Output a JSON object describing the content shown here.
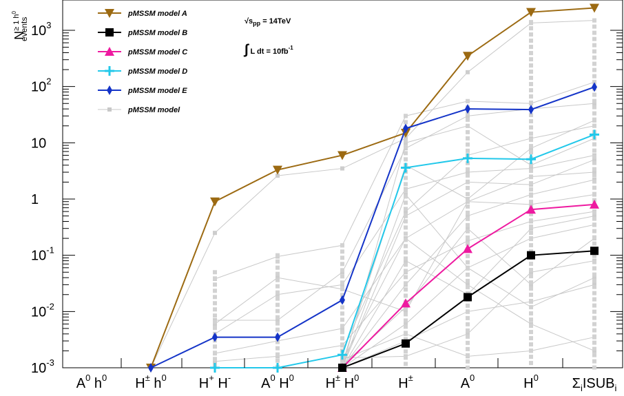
{
  "chart_data": {
    "type": "line",
    "yscale": "log",
    "ylim": [
      0.001,
      3000
    ],
    "ylabel": {
      "main": "N",
      "sup": "≥ 1 h",
      "sup_sup": "0",
      "sub": "events"
    },
    "y_ticks": [
      {
        "value": 0.001,
        "base": "10",
        "exp": "-3"
      },
      {
        "value": 0.01,
        "base": "10",
        "exp": "-2"
      },
      {
        "value": 0.1,
        "base": "10",
        "exp": "-1"
      },
      {
        "value": 1,
        "base": "1",
        "exp": ""
      },
      {
        "value": 10,
        "base": "10",
        "exp": ""
      },
      {
        "value": 100,
        "base": "10",
        "exp": "2"
      },
      {
        "value": 1000,
        "base": "10",
        "exp": "3"
      }
    ],
    "categories": [
      {
        "base": "A",
        "sup": "0",
        "mid": " h",
        "sup2": "0",
        "tail": ""
      },
      {
        "base": "H",
        "sup": "±",
        "mid": " h",
        "sup2": "0",
        "tail": ""
      },
      {
        "base": "H",
        "sup": "+",
        "mid": " H",
        "sup2": "-",
        "tail": ""
      },
      {
        "base": "A",
        "sup": "0",
        "mid": " H",
        "sup2": "0",
        "tail": ""
      },
      {
        "base": "H",
        "sup": "±",
        "mid": " H",
        "sup2": "0",
        "tail": ""
      },
      {
        "base": "H",
        "sup": "±",
        "mid": "",
        "sup2": "",
        "tail": ""
      },
      {
        "base": "A",
        "sup": "0",
        "mid": "",
        "sup2": "",
        "tail": ""
      },
      {
        "base": "H",
        "sup": "0",
        "mid": "",
        "sup2": "",
        "tail": ""
      },
      {
        "base": "Σ",
        "sub": "i",
        "mid": "ISUB",
        "sub2": "i",
        "tail": ""
      }
    ],
    "annotations": {
      "energy": "√s",
      "energy_sub": "pp",
      "energy_value": " = 14TeV",
      "lumi_integral": "∫",
      "lumi_text": "L dt = 10fb",
      "lumi_sup": "-1"
    },
    "series": [
      {
        "name": "pMSSM model A",
        "color": "#9c6a12",
        "marker": "triangle-down",
        "values": [
          null,
          0.001,
          0.9,
          3.3,
          6.0,
          15,
          350,
          2100,
          2500
        ]
      },
      {
        "name": "pMSSM model B",
        "color": "#000000",
        "marker": "square",
        "values": [
          null,
          null,
          null,
          null,
          0.001,
          0.0027,
          0.018,
          0.1,
          0.12
        ]
      },
      {
        "name": "pMSSM model C",
        "color": "#ee1aa0",
        "marker": "triangle-up",
        "values": [
          null,
          null,
          null,
          null,
          0.001,
          0.014,
          0.13,
          0.65,
          0.8
        ]
      },
      {
        "name": "pMSSM model D",
        "color": "#22c8ea",
        "marker": "cross",
        "values": [
          null,
          null,
          0.001,
          0.001,
          0.0017,
          3.6,
          5.3,
          5.1,
          14
        ]
      },
      {
        "name": "pMSSM model E",
        "color": "#1434c8",
        "marker": "diamond",
        "values": [
          null,
          0.001,
          0.0035,
          0.0035,
          0.016,
          18,
          40,
          39,
          98
        ]
      },
      {
        "name": "pMSSM model",
        "color": "#c8c8c8",
        "marker": "small-square",
        "values": [
          null,
          null,
          0.03,
          0.06,
          0.1,
          3.0,
          20,
          30,
          60
        ]
      }
    ],
    "background_models": [
      [
        null,
        0.001,
        0.25,
        2.6,
        3.5,
        12,
        180,
        1350,
        1500
      ],
      [
        null,
        null,
        0.038,
        0.095,
        0.15,
        30,
        55,
        50,
        120
      ],
      [
        null,
        null,
        0.007,
        0.007,
        0.05,
        8,
        30,
        40,
        50
      ],
      [
        null,
        null,
        0.006,
        0.04,
        0.025,
        0.01,
        0.9,
        2.5,
        3.0
      ],
      [
        null,
        null,
        0.004,
        0.02,
        0.03,
        1.5,
        3.0,
        3.5,
        6.0
      ],
      [
        null,
        null,
        0.0018,
        0.003,
        0.005,
        0.2,
        0.9,
        0.8,
        1.2
      ],
      [
        null,
        null,
        0.0013,
        0.0016,
        0.0025,
        0.05,
        0.18,
        0.4,
        0.6
      ],
      [
        null,
        null,
        null,
        null,
        0.001,
        0.5,
        2,
        1.8,
        5
      ],
      [
        null,
        null,
        null,
        null,
        0.001,
        0.08,
        0.02,
        0.3,
        0.5
      ],
      [
        null,
        null,
        null,
        null,
        0.001,
        0.003,
        0.01,
        0.015,
        0.03
      ],
      [
        null,
        null,
        null,
        null,
        0.0012,
        4,
        1.0,
        8,
        25
      ],
      [
        null,
        null,
        null,
        null,
        0.0015,
        0.0016,
        0.004,
        0.05,
        0.08
      ],
      [
        null,
        null,
        null,
        null,
        0.002,
        0.6,
        6,
        12,
        20
      ],
      [
        null,
        null,
        null,
        null,
        0.0013,
        0.2,
        0.03,
        0.006,
        0.002
      ],
      [
        null,
        null,
        null,
        null,
        0.0011,
        0.012,
        0.3,
        0.03,
        0.2
      ],
      [
        null,
        null,
        null,
        null,
        0.001,
        10,
        20,
        4,
        12
      ],
      [
        null,
        null,
        null,
        null,
        0.001,
        1.2,
        0.06,
        0.2,
        0.35
      ],
      [
        null,
        null,
        null,
        null,
        0.0014,
        0.004,
        0.0016,
        0.002,
        0.0035
      ],
      [
        null,
        null,
        null,
        null,
        0.001,
        0.03,
        0.5,
        1.2,
        2.2
      ],
      [
        null,
        null,
        null,
        null,
        0.001,
        0.006,
        0.06,
        0.012,
        0.04
      ]
    ]
  }
}
